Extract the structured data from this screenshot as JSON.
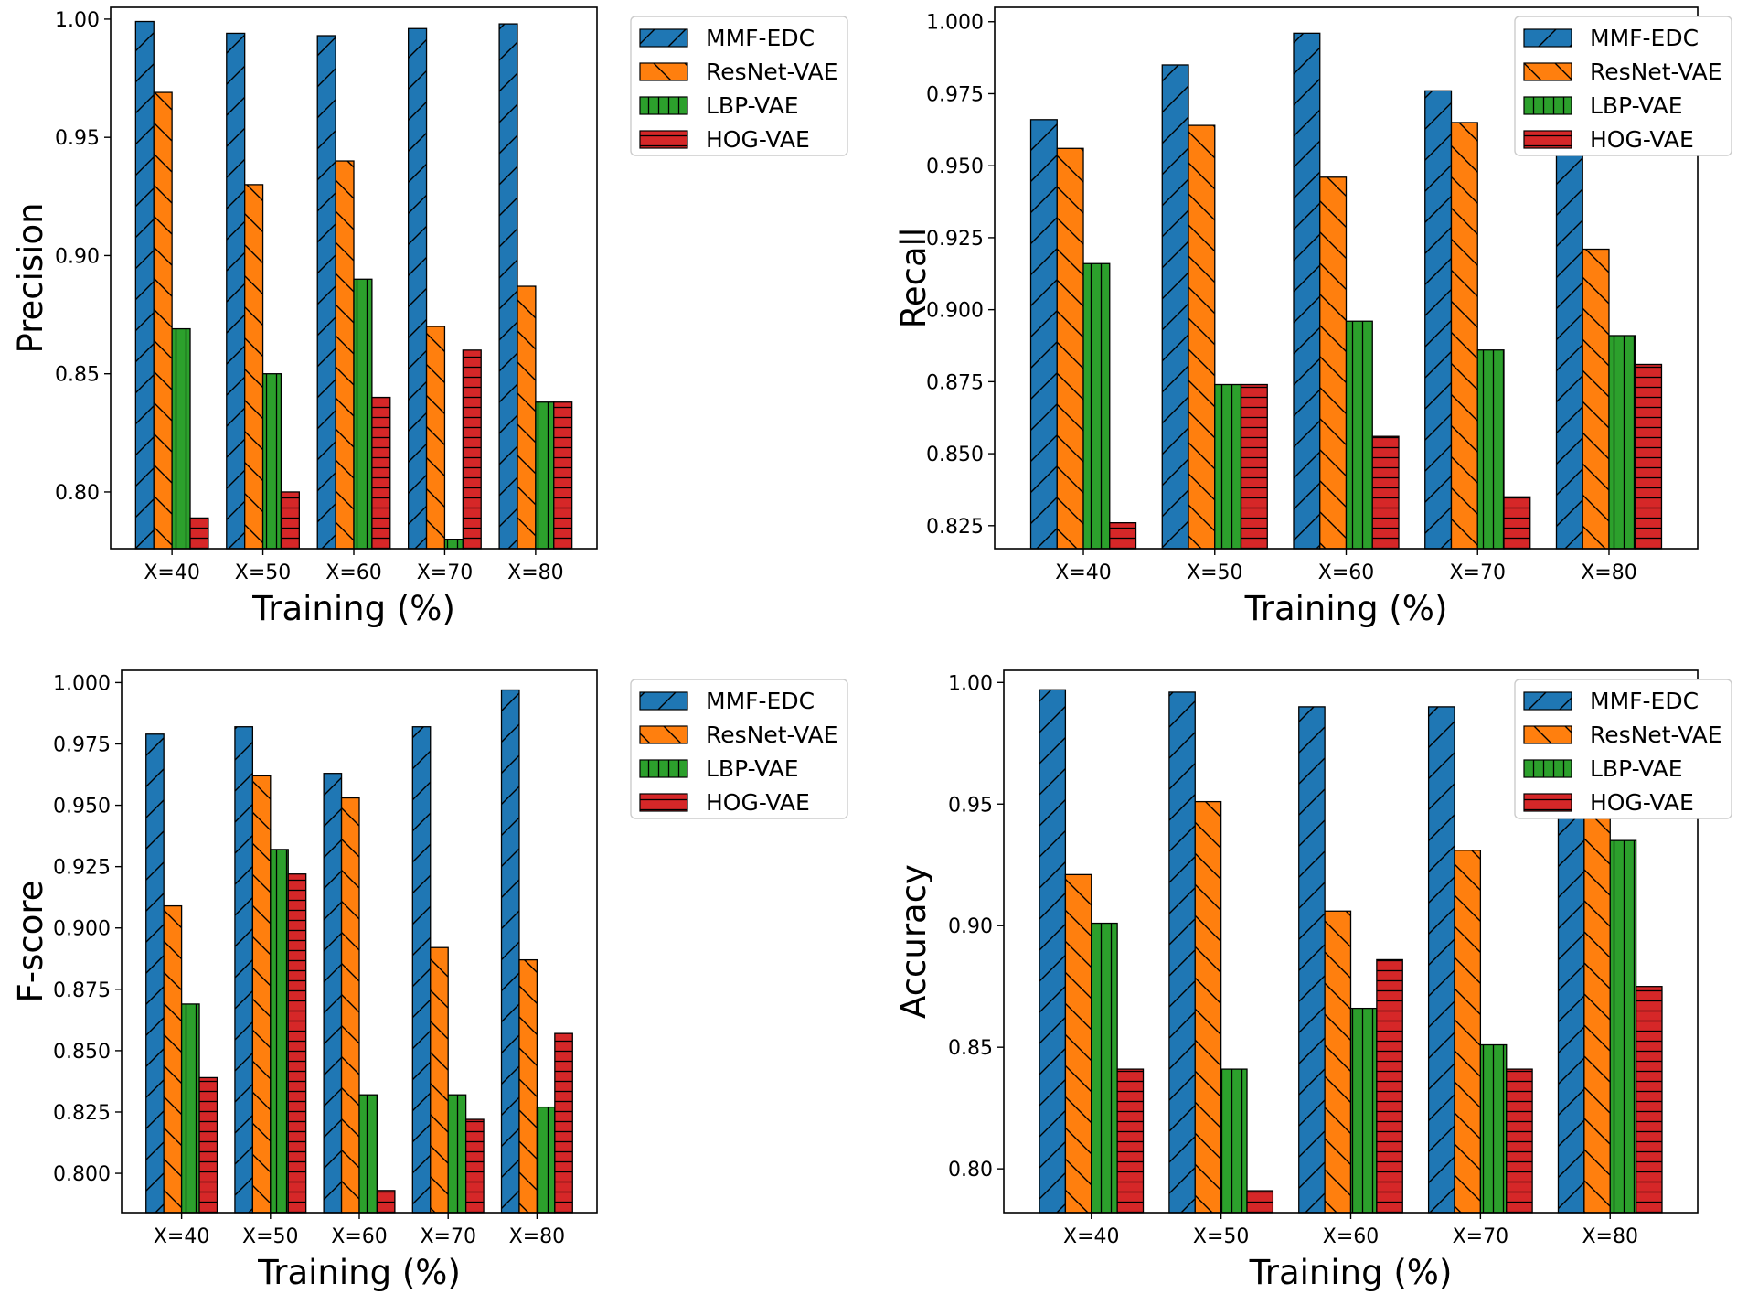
{
  "figure": {
    "legend_placement": "right, outside plot",
    "colors": {
      "MMF-EDC": "#1f77b4",
      "ResNet-VAE": "#ff7f0e",
      "LBP-VAE": "#2ca02c",
      "HOG-VAE": "#d62728"
    },
    "hatches": {
      "MMF-EDC": "forward-slash",
      "ResNet-VAE": "back-slash",
      "LBP-VAE": "vertical-lines",
      "HOG-VAE": "horizontal-lines"
    }
  },
  "chart_data": [
    {
      "type": "bar",
      "xlabel": "Training (%)",
      "ylabel": "Precision",
      "categories": [
        "X=40",
        "X=50",
        "X=60",
        "X=70",
        "X=80"
      ],
      "ylim": [
        0.776,
        1.005
      ],
      "yticks": [
        "0.80",
        "0.85",
        "0.90",
        "0.95",
        "1.00"
      ],
      "legend": "right",
      "grid": false,
      "series": [
        {
          "name": "MMF-EDC",
          "values": [
            0.999,
            0.994,
            0.993,
            0.996,
            0.998
          ]
        },
        {
          "name": "ResNet-VAE",
          "values": [
            0.969,
            0.93,
            0.94,
            0.87,
            0.887
          ]
        },
        {
          "name": "LBP-VAE",
          "values": [
            0.869,
            0.85,
            0.89,
            0.78,
            0.838
          ]
        },
        {
          "name": "HOG-VAE",
          "values": [
            0.789,
            0.8,
            0.84,
            0.86,
            0.838
          ]
        }
      ]
    },
    {
      "type": "bar",
      "xlabel": "Training (%)",
      "ylabel": "Recall",
      "categories": [
        "X=40",
        "X=50",
        "X=60",
        "X=70",
        "X=80"
      ],
      "ylim": [
        0.817,
        1.005
      ],
      "yticks": [
        "0.825",
        "0.850",
        "0.875",
        "0.900",
        "0.925",
        "0.950",
        "0.975",
        "1.000"
      ],
      "legend": "right",
      "grid": false,
      "series": [
        {
          "name": "MMF-EDC",
          "values": [
            0.966,
            0.985,
            0.996,
            0.976,
            0.996
          ]
        },
        {
          "name": "ResNet-VAE",
          "values": [
            0.956,
            0.964,
            0.946,
            0.965,
            0.921
          ]
        },
        {
          "name": "LBP-VAE",
          "values": [
            0.916,
            0.874,
            0.896,
            0.886,
            0.891
          ]
        },
        {
          "name": "HOG-VAE",
          "values": [
            0.826,
            0.874,
            0.856,
            0.835,
            0.881
          ]
        }
      ]
    },
    {
      "type": "bar",
      "xlabel": "Training (%)",
      "ylabel": "F-score",
      "categories": [
        "X=40",
        "X=50",
        "X=60",
        "X=70",
        "X=80"
      ],
      "ylim": [
        0.784,
        1.005
      ],
      "yticks": [
        "0.800",
        "0.825",
        "0.850",
        "0.875",
        "0.900",
        "0.925",
        "0.950",
        "0.975",
        "1.000"
      ],
      "legend": "right",
      "grid": false,
      "series": [
        {
          "name": "MMF-EDC",
          "values": [
            0.979,
            0.982,
            0.963,
            0.982,
            0.997
          ]
        },
        {
          "name": "ResNet-VAE",
          "values": [
            0.909,
            0.962,
            0.953,
            0.892,
            0.887
          ]
        },
        {
          "name": "LBP-VAE",
          "values": [
            0.869,
            0.932,
            0.832,
            0.832,
            0.827
          ]
        },
        {
          "name": "HOG-VAE",
          "values": [
            0.839,
            0.922,
            0.793,
            0.822,
            0.857
          ]
        }
      ]
    },
    {
      "type": "bar",
      "xlabel": "Training (%)",
      "ylabel": "Accuracy",
      "categories": [
        "X=40",
        "X=50",
        "X=60",
        "X=70",
        "X=80"
      ],
      "ylim": [
        0.782,
        1.005
      ],
      "yticks": [
        "0.80",
        "0.85",
        "0.90",
        "0.95",
        "1.00"
      ],
      "legend": "right",
      "grid": false,
      "series": [
        {
          "name": "MMF-EDC",
          "values": [
            0.997,
            0.996,
            0.99,
            0.99,
            0.998
          ]
        },
        {
          "name": "ResNet-VAE",
          "values": [
            0.921,
            0.951,
            0.906,
            0.931,
            0.945
          ]
        },
        {
          "name": "LBP-VAE",
          "values": [
            0.901,
            0.841,
            0.866,
            0.851,
            0.935
          ]
        },
        {
          "name": "HOG-VAE",
          "values": [
            0.841,
            0.791,
            0.886,
            0.841,
            0.875
          ]
        }
      ]
    }
  ]
}
